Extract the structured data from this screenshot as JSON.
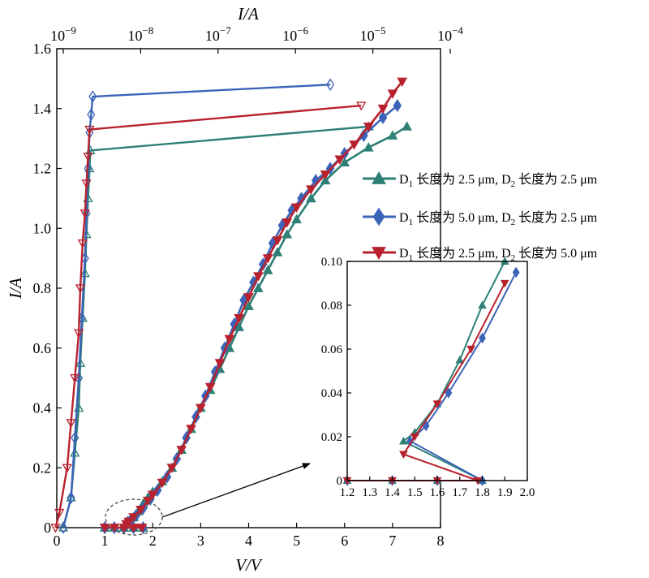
{
  "chart_data": {
    "type": "line",
    "xlabel": "V/V",
    "ylabel": "I/A",
    "top_xlabel": "I/A",
    "xlim": [
      0,
      8
    ],
    "ylim": [
      0,
      1.6
    ],
    "x_ticks": [
      "0",
      "1",
      "2",
      "3",
      "4",
      "5",
      "6",
      "7",
      "8"
    ],
    "y_ticks": [
      "0",
      "0.2",
      "0.4",
      "0.6",
      "0.8",
      "1.0",
      "1.2",
      "1.4",
      "1.6"
    ],
    "top_ticks": [
      {
        "base": "10",
        "exp": "−9"
      },
      {
        "base": "10",
        "exp": "−8"
      },
      {
        "base": "10",
        "exp": "−7"
      },
      {
        "base": "10",
        "exp": "−6"
      },
      {
        "base": "10",
        "exp": "−5"
      },
      {
        "base": "10",
        "exp": "−4"
      }
    ],
    "top_axis_log_range": [
      -9,
      -4
    ],
    "grid": false,
    "legend_position": "right",
    "series": [
      {
        "name": "D1 长度为 2.5 μm, D2 长度为 2.5 μm",
        "legend": {
          "a": "D",
          "a_sub": "1",
          "b": " 长度为 2.5 μm, D",
          "b_sub": "2",
          "c": " 长度为 2.5 μm"
        },
        "color": "#2e8077",
        "marker": "triangle-up",
        "iv": [
          [
            1.0,
            0
          ],
          [
            1.2,
            0
          ],
          [
            1.4,
            0
          ],
          [
            1.6,
            0
          ],
          [
            1.8,
            0
          ],
          [
            1.45,
            0.018
          ],
          [
            1.5,
            0.022
          ],
          [
            1.6,
            0.035
          ],
          [
            1.7,
            0.055
          ],
          [
            1.8,
            0.08
          ],
          [
            1.9,
            0.1
          ],
          [
            2.0,
            0.12
          ],
          [
            2.2,
            0.155
          ],
          [
            2.4,
            0.2
          ],
          [
            2.6,
            0.26
          ],
          [
            2.8,
            0.33
          ],
          [
            3.0,
            0.4
          ],
          [
            3.2,
            0.46
          ],
          [
            3.4,
            0.53
          ],
          [
            3.6,
            0.6
          ],
          [
            3.8,
            0.67
          ],
          [
            4.0,
            0.74
          ],
          [
            4.2,
            0.8
          ],
          [
            4.4,
            0.86
          ],
          [
            4.6,
            0.92
          ],
          [
            4.8,
            0.98
          ],
          [
            5.0,
            1.03
          ],
          [
            5.3,
            1.1
          ],
          [
            5.6,
            1.16
          ],
          [
            6.0,
            1.22
          ],
          [
            6.5,
            1.27
          ],
          [
            7.0,
            1.31
          ],
          [
            7.3,
            1.34
          ]
        ],
        "log_sweep": [
          [
            -9.0,
            0.0
          ],
          [
            -8.9,
            0.1
          ],
          [
            -8.85,
            0.25
          ],
          [
            -8.8,
            0.4
          ],
          [
            -8.78,
            0.55
          ],
          [
            -8.75,
            0.7
          ],
          [
            -8.72,
            0.85
          ],
          [
            -8.7,
            0.98
          ],
          [
            -8.68,
            1.1
          ],
          [
            -8.66,
            1.2
          ],
          [
            -8.65,
            1.26
          ],
          [
            -5.05,
            1.34
          ]
        ]
      },
      {
        "name": "D1 长度为 5.0 μm, D2 长度为 2.5 μm",
        "legend": {
          "a": "D",
          "a_sub": "1",
          "b": " 长度为 5.0 μm, D",
          "b_sub": "2",
          "c": " 长度为 2.5 μm"
        },
        "color": "#3b64b8",
        "marker": "diamond",
        "iv": [
          [
            1.0,
            0
          ],
          [
            1.2,
            0
          ],
          [
            1.4,
            0
          ],
          [
            1.6,
            0
          ],
          [
            1.8,
            0
          ],
          [
            1.48,
            0.018
          ],
          [
            1.55,
            0.025
          ],
          [
            1.65,
            0.04
          ],
          [
            1.8,
            0.065
          ],
          [
            1.95,
            0.095
          ],
          [
            2.1,
            0.125
          ],
          [
            2.3,
            0.17
          ],
          [
            2.5,
            0.23
          ],
          [
            2.7,
            0.3
          ],
          [
            2.9,
            0.37
          ],
          [
            3.1,
            0.44
          ],
          [
            3.3,
            0.52
          ],
          [
            3.5,
            0.6
          ],
          [
            3.7,
            0.68
          ],
          [
            3.9,
            0.76
          ],
          [
            4.1,
            0.82
          ],
          [
            4.3,
            0.88
          ],
          [
            4.5,
            0.95
          ],
          [
            4.7,
            1.01
          ],
          [
            4.9,
            1.06
          ],
          [
            5.1,
            1.1
          ],
          [
            5.4,
            1.16
          ],
          [
            5.7,
            1.2
          ],
          [
            6.0,
            1.25
          ],
          [
            6.4,
            1.31
          ],
          [
            6.8,
            1.37
          ],
          [
            7.1,
            1.41
          ]
        ],
        "log_sweep": [
          [
            -9.0,
            0.0
          ],
          [
            -8.9,
            0.1
          ],
          [
            -8.85,
            0.3
          ],
          [
            -8.8,
            0.5
          ],
          [
            -8.76,
            0.7
          ],
          [
            -8.72,
            0.9
          ],
          [
            -8.7,
            1.05
          ],
          [
            -8.68,
            1.2
          ],
          [
            -8.66,
            1.32
          ],
          [
            -8.64,
            1.38
          ],
          [
            -8.62,
            1.44
          ],
          [
            -5.55,
            1.48
          ]
        ]
      },
      {
        "name": "D1 长度为 2.5 μm, D2 长度为 5.0 μm",
        "legend": {
          "a": "D",
          "a_sub": "1",
          "b": " 长度为 2.5 μm, D",
          "b_sub": "2",
          "c": " 长度为 5.0 μm"
        },
        "color": "#b8222e",
        "marker": "triangle-down",
        "iv": [
          [
            1.0,
            0
          ],
          [
            1.2,
            0
          ],
          [
            1.4,
            0
          ],
          [
            1.6,
            0
          ],
          [
            1.78,
            0
          ],
          [
            1.45,
            0.012
          ],
          [
            1.5,
            0.02
          ],
          [
            1.6,
            0.035
          ],
          [
            1.75,
            0.06
          ],
          [
            1.9,
            0.09
          ],
          [
            2.0,
            0.11
          ],
          [
            2.2,
            0.15
          ],
          [
            2.4,
            0.2
          ],
          [
            2.6,
            0.26
          ],
          [
            2.8,
            0.33
          ],
          [
            3.0,
            0.4
          ],
          [
            3.2,
            0.47
          ],
          [
            3.4,
            0.55
          ],
          [
            3.6,
            0.63
          ],
          [
            3.8,
            0.7
          ],
          [
            4.0,
            0.77
          ],
          [
            4.2,
            0.84
          ],
          [
            4.4,
            0.9
          ],
          [
            4.6,
            0.96
          ],
          [
            4.8,
            1.02
          ],
          [
            5.0,
            1.07
          ],
          [
            5.3,
            1.13
          ],
          [
            5.6,
            1.18
          ],
          [
            5.9,
            1.23
          ],
          [
            6.2,
            1.28
          ],
          [
            6.5,
            1.34
          ],
          [
            6.8,
            1.4
          ],
          [
            7.0,
            1.45
          ],
          [
            7.2,
            1.49
          ]
        ],
        "log_sweep": [
          [
            -9.1,
            0.0
          ],
          [
            -9.05,
            0.05
          ],
          [
            -8.95,
            0.2
          ],
          [
            -8.9,
            0.35
          ],
          [
            -8.85,
            0.5
          ],
          [
            -8.8,
            0.65
          ],
          [
            -8.78,
            0.8
          ],
          [
            -8.75,
            0.95
          ],
          [
            -8.72,
            1.05
          ],
          [
            -8.7,
            1.15
          ],
          [
            -8.68,
            1.24
          ],
          [
            -8.66,
            1.33
          ],
          [
            -5.15,
            1.41
          ]
        ]
      }
    ],
    "inset": {
      "xlim": [
        1.2,
        2.0
      ],
      "ylim": [
        0,
        0.1
      ],
      "x_ticks": [
        "1.2",
        "1.3",
        "1.4",
        "1.5",
        "1.6",
        "1.7",
        "1.8",
        "1.9",
        "2.0"
      ],
      "y_ticks": [
        "0",
        "0.02",
        "0.04",
        "0.06",
        "0.08",
        "0.10"
      ]
    }
  }
}
